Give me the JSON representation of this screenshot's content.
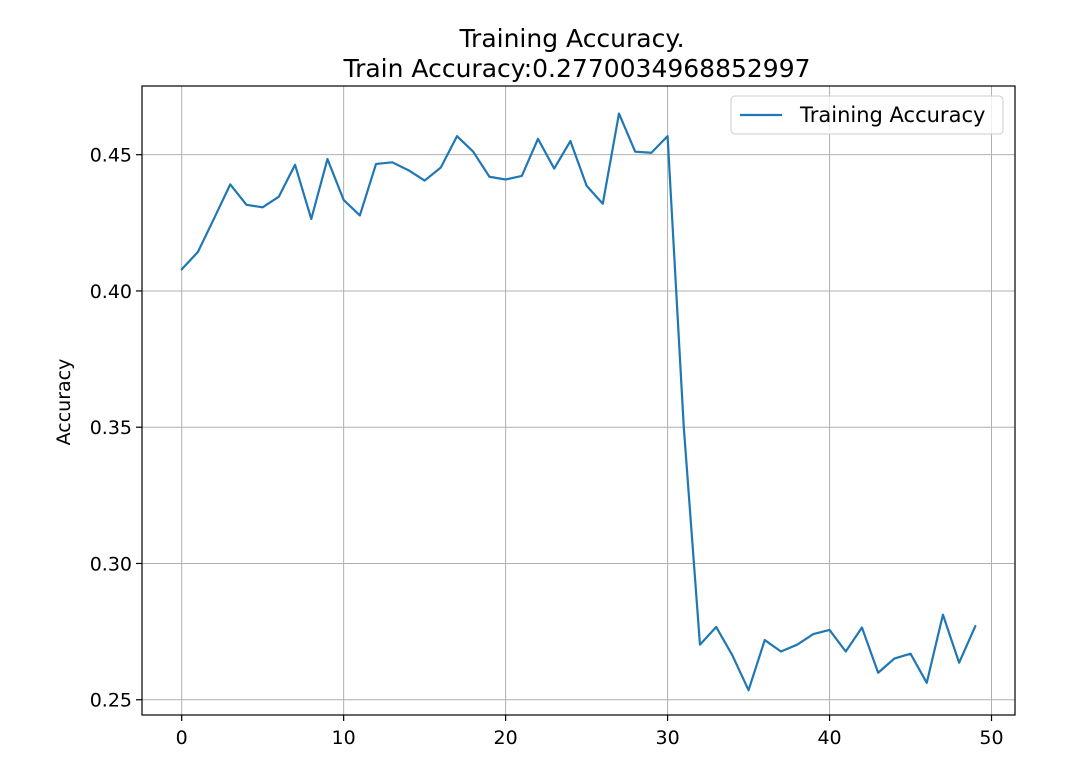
{
  "chart_data": {
    "type": "line",
    "title": "Training  Accuracy.",
    "subtitle": "Train Accuracy:0.27700349688529​97",
    "xlabel": "",
    "ylabel": "Accuracy",
    "xlim": [
      -2.45,
      51.45
    ],
    "ylim": [
      0.2444,
      0.4752
    ],
    "xticks": [
      0,
      10,
      20,
      30,
      40,
      50
    ],
    "xtick_labels": [
      "0",
      "10",
      "20",
      "30",
      "40",
      "50"
    ],
    "yticks": [
      0.25,
      0.3,
      0.35,
      0.4,
      0.45
    ],
    "ytick_labels": [
      "0.25",
      "0.30",
      "0.35",
      "0.40",
      "0.45"
    ],
    "grid": true,
    "legend_position": "top-right",
    "series": [
      {
        "name": "Training Accuracy",
        "color": "#1f77b4",
        "x": [
          0,
          1,
          2,
          3,
          4,
          5,
          6,
          7,
          8,
          9,
          10,
          11,
          12,
          13,
          14,
          15,
          16,
          17,
          18,
          19,
          20,
          21,
          22,
          23,
          24,
          25,
          26,
          27,
          28,
          29,
          30,
          31,
          32,
          33,
          34,
          35,
          36,
          37,
          38,
          39,
          40,
          41,
          42,
          43,
          44,
          45,
          46,
          47,
          48,
          49
        ],
        "y": [
          0.4079,
          0.4143,
          0.4266,
          0.4391,
          0.4316,
          0.4307,
          0.4346,
          0.4463,
          0.4264,
          0.4484,
          0.4334,
          0.4277,
          0.4466,
          0.4472,
          0.4443,
          0.4405,
          0.4453,
          0.4568,
          0.4511,
          0.4419,
          0.4409,
          0.4422,
          0.4558,
          0.4449,
          0.455,
          0.4386,
          0.432,
          0.4651,
          0.4511,
          0.4507,
          0.4568,
          0.35,
          0.2702,
          0.2767,
          0.2663,
          0.2535,
          0.2719,
          0.2677,
          0.2702,
          0.2741,
          0.2756,
          0.2677,
          0.2765,
          0.2599,
          0.2651,
          0.2669,
          0.2562,
          0.2812,
          0.2636,
          0.277
        ]
      }
    ]
  }
}
